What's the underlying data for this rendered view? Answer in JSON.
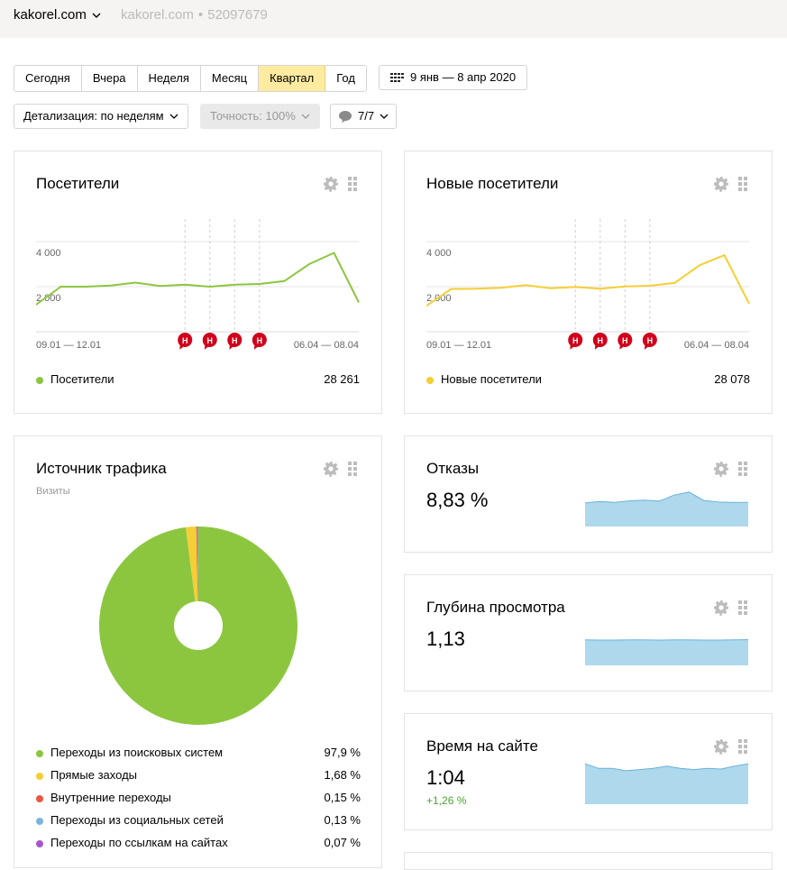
{
  "header": {
    "site_name": "kakorel.com",
    "site_host": "kakorel.com",
    "separator": "•",
    "counter_id": "52097679"
  },
  "periods": [
    "Сегодня",
    "Вчера",
    "Неделя",
    "Месяц",
    "Квартал",
    "Год"
  ],
  "active_period": "Квартал",
  "date_range": "9 янв — 8 апр 2020",
  "detail_label": "Детализация: по неделям",
  "accuracy_label": "Точность: 100%",
  "segments_label": "7/7",
  "colors": {
    "green": "#8cc63f",
    "yellow": "#f6ce35",
    "red": "#e8573f",
    "blue": "#7ab4dd",
    "purple": "#a657c9",
    "area": "#aed8ec",
    "area_line": "#6ab2da",
    "annot": "#d0021b"
  },
  "visitors": {
    "title": "Посетители",
    "legend": "Посетители",
    "total": "28 261",
    "annot_letter": "Н",
    "chart_data": {
      "type": "line",
      "ylim": [
        0,
        5000
      ],
      "yticks": [
        "4 000",
        "2 000"
      ],
      "xlabels": [
        "09.01 — 12.01",
        "06.04 — 08.04"
      ],
      "series": [
        {
          "name": "Посетители",
          "values": [
            1200,
            2000,
            2000,
            2050,
            2180,
            2030,
            2090,
            2000,
            2090,
            2120,
            2250,
            3000,
            3500,
            1300
          ]
        }
      ]
    }
  },
  "new_visitors": {
    "title": "Новые посетители",
    "legend": "Новые посетители",
    "total": "28 078",
    "annot_letter": "Н",
    "chart_data": {
      "type": "line",
      "ylim": [
        0,
        5000
      ],
      "yticks": [
        "4 000",
        "2 000"
      ],
      "xlabels": [
        "09.01 — 12.01",
        "06.04 — 08.04"
      ],
      "series": [
        {
          "name": "Новые посетители",
          "values": [
            1150,
            1900,
            1910,
            1950,
            2070,
            1930,
            1990,
            1910,
            2010,
            2040,
            2170,
            2950,
            3400,
            1250
          ]
        }
      ]
    }
  },
  "traffic": {
    "title": "Источник трафика",
    "subtitle": "Визиты",
    "chart_data": {
      "type": "pie",
      "slices": [
        {
          "name": "Переходы из поисковых систем",
          "value": 97.9,
          "label": "97,9 %",
          "color": "#8cc63f"
        },
        {
          "name": "Прямые заходы",
          "value": 1.68,
          "label": "1,68 %",
          "color": "#f6ce35"
        },
        {
          "name": "Внутренние переходы",
          "value": 0.15,
          "label": "0,15 %",
          "color": "#e8573f"
        },
        {
          "name": "Переходы из социальных сетей",
          "value": 0.13,
          "label": "0,13 %",
          "color": "#7ab4dd"
        },
        {
          "name": "Переходы по ссылкам на сайтах",
          "value": 0.07,
          "label": "0,07 %",
          "color": "#a657c9"
        }
      ]
    }
  },
  "bounce": {
    "title": "Отказы",
    "value": "8,83 %",
    "chart_data": {
      "type": "area",
      "values": [
        7.5,
        8.0,
        7.7,
        8.2,
        8.4,
        8.1,
        10.0,
        11.0,
        8.3,
        7.8,
        7.7,
        7.7
      ]
    }
  },
  "depth": {
    "title": "Глубина просмотра",
    "value": "1,13",
    "chart_data": {
      "type": "area",
      "values": [
        1.13,
        1.12,
        1.12,
        1.13,
        1.13,
        1.12,
        1.13,
        1.13,
        1.12,
        1.12,
        1.13,
        1.14
      ]
    }
  },
  "time": {
    "title": "Время на сайте",
    "value": "1:04",
    "delta": "+1,26 %",
    "chart_data": {
      "type": "area",
      "values": [
        70,
        62,
        62,
        58,
        60,
        62,
        66,
        62,
        60,
        62,
        61,
        66,
        70
      ]
    }
  }
}
